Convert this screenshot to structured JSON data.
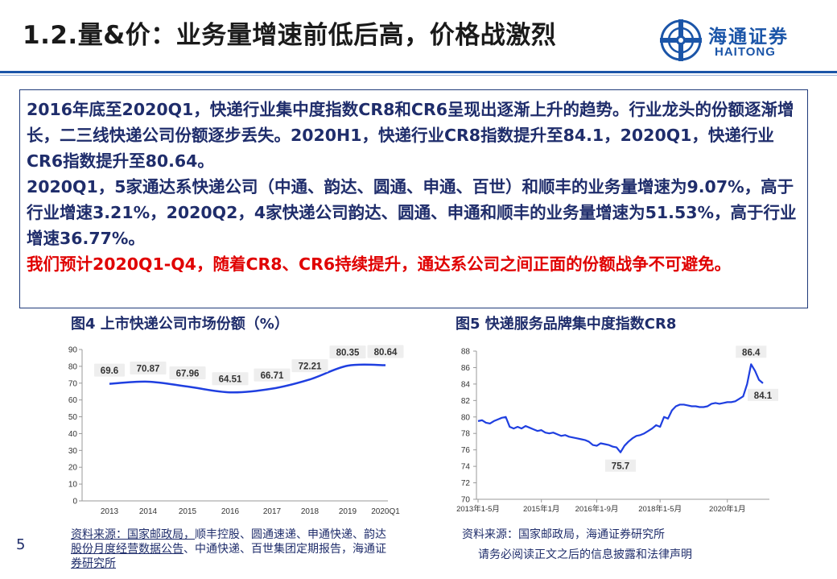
{
  "header": {
    "title": "1.2.量&价：业务量增速前低后高，价格战激烈",
    "logo_cn": "海通证券",
    "logo_en": "HAITONG"
  },
  "summary": {
    "p1": "2016年底至2020Q1，快递行业集中度指数CR8和CR6呈现出逐渐上升的趋势。行业龙头的份额逐渐增长，二三线快递公司份额逐步丢失。2020H1，快递行业CR8指数提升至84.1，2020Q1，快递行业CR6指数提升至80.64。",
    "p2": "2020Q1，5家通达系快递公司（中通、韵达、圆通、申通、百世）和顺丰的业务量增速为9.07%，高于行业增速3.21%，2020Q2，4家快递公司韵达、圆通、申通和顺丰的业务量增速为51.53%，高于行业增速36.77%。",
    "p3": "我们预计2020Q1-Q4，随着CR8、CR6持续提升，通达系公司之间正面的份额战争不可避免。"
  },
  "chart_titles": {
    "fig4": "图4 上市快递公司市场份额（%）",
    "fig5": "图5 快递服务品牌集中度指数CR8"
  },
  "chart_data": [
    {
      "type": "line",
      "title": "图4 上市快递公司市场份额（%）",
      "categories": [
        "2013",
        "2014",
        "2015",
        "2016",
        "2017",
        "2018",
        "2019",
        "2020Q1"
      ],
      "values": [
        69.6,
        70.87,
        67.96,
        64.51,
        66.71,
        72.21,
        80.35,
        80.64
      ],
      "labels": [
        "69.6",
        "70.87",
        "67.96",
        "64.51",
        "66.71",
        "72.21",
        "80.35",
        "80.64"
      ],
      "ylim": [
        0,
        90
      ],
      "yticks": [
        0,
        10,
        20,
        30,
        40,
        50,
        60,
        70,
        80,
        90
      ],
      "color": "#1f3fe0",
      "grid": false,
      "legend": "none"
    },
    {
      "type": "line",
      "title": "图5 快递服务品牌集中度指数CR8",
      "xtick_labels": [
        "2013年1-5月",
        "2015年1月",
        "2016年1-9月",
        "2018年1-5月",
        "2020年1月"
      ],
      "ylim": [
        70,
        88
      ],
      "yticks": [
        70,
        72,
        74,
        76,
        78,
        80,
        82,
        84,
        86,
        88
      ],
      "annotations": [
        {
          "text": "86.4",
          "value": 86.4
        },
        {
          "text": "75.7",
          "value": 75.7
        },
        {
          "text": "84.1",
          "value": 84.1
        }
      ],
      "values": [
        79.5,
        79.6,
        79.3,
        79.2,
        79.5,
        79.7,
        79.9,
        80.0,
        78.8,
        78.6,
        78.8,
        78.6,
        78.9,
        78.7,
        78.5,
        78.3,
        78.4,
        78.1,
        78.0,
        78.1,
        77.9,
        77.7,
        77.8,
        77.6,
        77.5,
        77.4,
        77.3,
        77.2,
        77.0,
        76.6,
        76.5,
        76.8,
        76.7,
        76.6,
        76.4,
        76.3,
        75.7,
        76.5,
        77.0,
        77.4,
        77.7,
        77.8,
        78.0,
        78.3,
        78.6,
        79.0,
        78.8,
        80.0,
        79.8,
        80.8,
        81.3,
        81.5,
        81.5,
        81.4,
        81.3,
        81.3,
        81.2,
        81.2,
        81.3,
        81.6,
        81.7,
        81.6,
        81.7,
        81.8,
        81.8,
        81.9,
        82.2,
        82.5,
        84.0,
        86.4,
        85.6,
        84.5,
        84.1
      ],
      "color": "#1f3fe0",
      "grid": false,
      "legend": "none"
    }
  ],
  "sources": {
    "left_prefix": "资料来源：",
    "left_link1": "国家邮政局，",
    "left_text1": "顺丰控股、圆通速递、申通快递、韵达",
    "left_link2": "股份月度经营数据公告",
    "left_text2": "、中通快递、百世集团定期报告，海通证",
    "left_link3": "券研究所",
    "right": "资料来源：国家邮政局，海通证券研究所"
  },
  "footer": {
    "disclaimer": "请务必阅读正文之后的信息披露和法律声明",
    "page": "5"
  }
}
